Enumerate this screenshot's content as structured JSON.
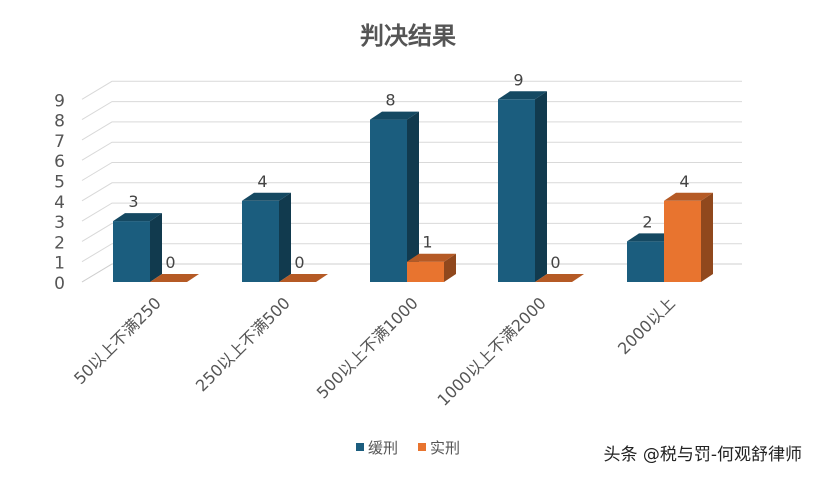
{
  "chart_data": {
    "type": "bar",
    "title": "判决结果",
    "categories": [
      "50以上不满250",
      "250以上不满500",
      "500以上不满1000",
      "1000以上不满2000",
      "2000以上"
    ],
    "series": [
      {
        "name": "缓刑",
        "values": [
          3,
          4,
          8,
          9,
          2
        ],
        "color": "#1b5d7e"
      },
      {
        "name": "实刑",
        "values": [
          0,
          0,
          1,
          0,
          4
        ],
        "color": "#e8742f"
      }
    ],
    "yticks": [
      "0",
      "1",
      "2",
      "3",
      "4",
      "5",
      "6",
      "7",
      "8",
      "9"
    ],
    "ylim": [
      0,
      9
    ],
    "grid": true,
    "legend": "bottom"
  },
  "watermark": "头条 @税与罚-何观舒律师"
}
